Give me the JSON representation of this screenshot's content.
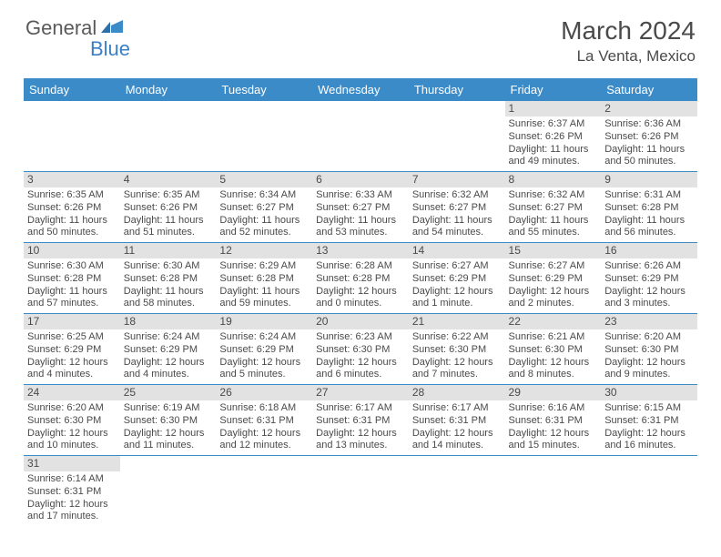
{
  "logo": {
    "general": "General",
    "blue": "Blue"
  },
  "title": "March 2024",
  "location": "La Venta, Mexico",
  "colors": {
    "header_bg": "#3b8bc9",
    "header_text": "#ffffff",
    "daynum_bg": "#e2e2e2",
    "row_divider": "#3b8bc9",
    "body_text": "#4a4a4a",
    "logo_gray": "#5a5a5a",
    "logo_blue": "#3b7fc4",
    "background": "#ffffff"
  },
  "fonts": {
    "title_size_pt": 21,
    "location_size_pt": 13,
    "th_size_pt": 10,
    "cell_size_pt": 8
  },
  "weekdays": [
    "Sunday",
    "Monday",
    "Tuesday",
    "Wednesday",
    "Thursday",
    "Friday",
    "Saturday"
  ],
  "weeks": [
    [
      null,
      null,
      null,
      null,
      null,
      {
        "n": "1",
        "sunrise": "Sunrise: 6:37 AM",
        "sunset": "Sunset: 6:26 PM",
        "day1": "Daylight: 11 hours",
        "day2": "and 49 minutes."
      },
      {
        "n": "2",
        "sunrise": "Sunrise: 6:36 AM",
        "sunset": "Sunset: 6:26 PM",
        "day1": "Daylight: 11 hours",
        "day2": "and 50 minutes."
      }
    ],
    [
      {
        "n": "3",
        "sunrise": "Sunrise: 6:35 AM",
        "sunset": "Sunset: 6:26 PM",
        "day1": "Daylight: 11 hours",
        "day2": "and 50 minutes."
      },
      {
        "n": "4",
        "sunrise": "Sunrise: 6:35 AM",
        "sunset": "Sunset: 6:26 PM",
        "day1": "Daylight: 11 hours",
        "day2": "and 51 minutes."
      },
      {
        "n": "5",
        "sunrise": "Sunrise: 6:34 AM",
        "sunset": "Sunset: 6:27 PM",
        "day1": "Daylight: 11 hours",
        "day2": "and 52 minutes."
      },
      {
        "n": "6",
        "sunrise": "Sunrise: 6:33 AM",
        "sunset": "Sunset: 6:27 PM",
        "day1": "Daylight: 11 hours",
        "day2": "and 53 minutes."
      },
      {
        "n": "7",
        "sunrise": "Sunrise: 6:32 AM",
        "sunset": "Sunset: 6:27 PM",
        "day1": "Daylight: 11 hours",
        "day2": "and 54 minutes."
      },
      {
        "n": "8",
        "sunrise": "Sunrise: 6:32 AM",
        "sunset": "Sunset: 6:27 PM",
        "day1": "Daylight: 11 hours",
        "day2": "and 55 minutes."
      },
      {
        "n": "9",
        "sunrise": "Sunrise: 6:31 AM",
        "sunset": "Sunset: 6:28 PM",
        "day1": "Daylight: 11 hours",
        "day2": "and 56 minutes."
      }
    ],
    [
      {
        "n": "10",
        "sunrise": "Sunrise: 6:30 AM",
        "sunset": "Sunset: 6:28 PM",
        "day1": "Daylight: 11 hours",
        "day2": "and 57 minutes."
      },
      {
        "n": "11",
        "sunrise": "Sunrise: 6:30 AM",
        "sunset": "Sunset: 6:28 PM",
        "day1": "Daylight: 11 hours",
        "day2": "and 58 minutes."
      },
      {
        "n": "12",
        "sunrise": "Sunrise: 6:29 AM",
        "sunset": "Sunset: 6:28 PM",
        "day1": "Daylight: 11 hours",
        "day2": "and 59 minutes."
      },
      {
        "n": "13",
        "sunrise": "Sunrise: 6:28 AM",
        "sunset": "Sunset: 6:28 PM",
        "day1": "Daylight: 12 hours",
        "day2": "and 0 minutes."
      },
      {
        "n": "14",
        "sunrise": "Sunrise: 6:27 AM",
        "sunset": "Sunset: 6:29 PM",
        "day1": "Daylight: 12 hours",
        "day2": "and 1 minute."
      },
      {
        "n": "15",
        "sunrise": "Sunrise: 6:27 AM",
        "sunset": "Sunset: 6:29 PM",
        "day1": "Daylight: 12 hours",
        "day2": "and 2 minutes."
      },
      {
        "n": "16",
        "sunrise": "Sunrise: 6:26 AM",
        "sunset": "Sunset: 6:29 PM",
        "day1": "Daylight: 12 hours",
        "day2": "and 3 minutes."
      }
    ],
    [
      {
        "n": "17",
        "sunrise": "Sunrise: 6:25 AM",
        "sunset": "Sunset: 6:29 PM",
        "day1": "Daylight: 12 hours",
        "day2": "and 4 minutes."
      },
      {
        "n": "18",
        "sunrise": "Sunrise: 6:24 AM",
        "sunset": "Sunset: 6:29 PM",
        "day1": "Daylight: 12 hours",
        "day2": "and 4 minutes."
      },
      {
        "n": "19",
        "sunrise": "Sunrise: 6:24 AM",
        "sunset": "Sunset: 6:29 PM",
        "day1": "Daylight: 12 hours",
        "day2": "and 5 minutes."
      },
      {
        "n": "20",
        "sunrise": "Sunrise: 6:23 AM",
        "sunset": "Sunset: 6:30 PM",
        "day1": "Daylight: 12 hours",
        "day2": "and 6 minutes."
      },
      {
        "n": "21",
        "sunrise": "Sunrise: 6:22 AM",
        "sunset": "Sunset: 6:30 PM",
        "day1": "Daylight: 12 hours",
        "day2": "and 7 minutes."
      },
      {
        "n": "22",
        "sunrise": "Sunrise: 6:21 AM",
        "sunset": "Sunset: 6:30 PM",
        "day1": "Daylight: 12 hours",
        "day2": "and 8 minutes."
      },
      {
        "n": "23",
        "sunrise": "Sunrise: 6:20 AM",
        "sunset": "Sunset: 6:30 PM",
        "day1": "Daylight: 12 hours",
        "day2": "and 9 minutes."
      }
    ],
    [
      {
        "n": "24",
        "sunrise": "Sunrise: 6:20 AM",
        "sunset": "Sunset: 6:30 PM",
        "day1": "Daylight: 12 hours",
        "day2": "and 10 minutes."
      },
      {
        "n": "25",
        "sunrise": "Sunrise: 6:19 AM",
        "sunset": "Sunset: 6:30 PM",
        "day1": "Daylight: 12 hours",
        "day2": "and 11 minutes."
      },
      {
        "n": "26",
        "sunrise": "Sunrise: 6:18 AM",
        "sunset": "Sunset: 6:31 PM",
        "day1": "Daylight: 12 hours",
        "day2": "and 12 minutes."
      },
      {
        "n": "27",
        "sunrise": "Sunrise: 6:17 AM",
        "sunset": "Sunset: 6:31 PM",
        "day1": "Daylight: 12 hours",
        "day2": "and 13 minutes."
      },
      {
        "n": "28",
        "sunrise": "Sunrise: 6:17 AM",
        "sunset": "Sunset: 6:31 PM",
        "day1": "Daylight: 12 hours",
        "day2": "and 14 minutes."
      },
      {
        "n": "29",
        "sunrise": "Sunrise: 6:16 AM",
        "sunset": "Sunset: 6:31 PM",
        "day1": "Daylight: 12 hours",
        "day2": "and 15 minutes."
      },
      {
        "n": "30",
        "sunrise": "Sunrise: 6:15 AM",
        "sunset": "Sunset: 6:31 PM",
        "day1": "Daylight: 12 hours",
        "day2": "and 16 minutes."
      }
    ],
    [
      {
        "n": "31",
        "sunrise": "Sunrise: 6:14 AM",
        "sunset": "Sunset: 6:31 PM",
        "day1": "Daylight: 12 hours",
        "day2": "and 17 minutes."
      },
      null,
      null,
      null,
      null,
      null,
      null
    ]
  ]
}
